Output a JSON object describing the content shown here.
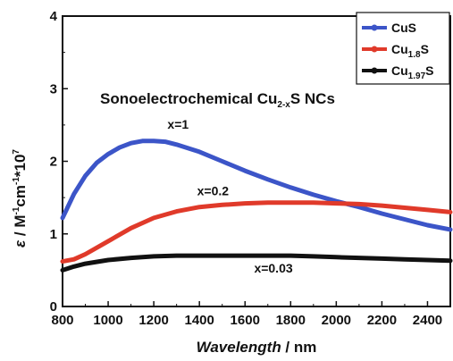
{
  "chart_data": {
    "type": "line",
    "title": "Sonoelectrochemical Cu2-xS NCs",
    "title_parts": {
      "base": "Sonoelectrochemical Cu",
      "sub": "2-x",
      "tail": "S NCs"
    },
    "xlabel": {
      "italic": "Wavelength",
      "rest": " / nm"
    },
    "ylabel": "ε / M⁻¹cm⁻¹*10⁷",
    "xlim": [
      800,
      2500
    ],
    "ylim": [
      0,
      4
    ],
    "x_ticks": [
      800,
      1000,
      1200,
      1400,
      1600,
      1800,
      2000,
      2200,
      2400
    ],
    "y_ticks": [
      0,
      1,
      2,
      3,
      4
    ],
    "grid": false,
    "legend_position": "top-right",
    "series": [
      {
        "name": "CuS",
        "name_parts": {
          "base": "CuS",
          "sub": "",
          "tail": ""
        },
        "color": "#3c55c8",
        "x": [
          800,
          850,
          900,
          950,
          1000,
          1050,
          1100,
          1150,
          1200,
          1250,
          1300,
          1400,
          1500,
          1600,
          1700,
          1800,
          1900,
          2000,
          2100,
          2200,
          2300,
          2400,
          2500
        ],
        "y": [
          1.22,
          1.55,
          1.8,
          1.98,
          2.1,
          2.19,
          2.25,
          2.28,
          2.28,
          2.27,
          2.23,
          2.13,
          2.0,
          1.87,
          1.75,
          1.64,
          1.54,
          1.45,
          1.37,
          1.28,
          1.2,
          1.12,
          1.06
        ]
      },
      {
        "name": "Cu1.8S",
        "name_parts": {
          "base": "Cu",
          "sub": "1.8",
          "tail": "S"
        },
        "color": "#e03a2a",
        "x": [
          800,
          850,
          900,
          1000,
          1100,
          1200,
          1300,
          1400,
          1500,
          1600,
          1700,
          1800,
          1900,
          2000,
          2100,
          2200,
          2300,
          2400,
          2500
        ],
        "y": [
          0.62,
          0.65,
          0.72,
          0.9,
          1.08,
          1.22,
          1.31,
          1.37,
          1.4,
          1.42,
          1.43,
          1.43,
          1.43,
          1.42,
          1.41,
          1.39,
          1.36,
          1.33,
          1.3
        ]
      },
      {
        "name": "Cu1.97S",
        "name_parts": {
          "base": "Cu",
          "sub": "1.97",
          "tail": "S"
        },
        "color": "#111111",
        "x": [
          800,
          850,
          900,
          1000,
          1100,
          1200,
          1300,
          1400,
          1500,
          1600,
          1700,
          1800,
          1900,
          2000,
          2100,
          2200,
          2300,
          2400,
          2500
        ],
        "y": [
          0.5,
          0.55,
          0.59,
          0.64,
          0.67,
          0.69,
          0.7,
          0.7,
          0.7,
          0.7,
          0.7,
          0.7,
          0.69,
          0.68,
          0.67,
          0.66,
          0.65,
          0.64,
          0.63
        ]
      }
    ],
    "annotations": [
      {
        "text": "x=1",
        "x": 1260,
        "y": 2.45
      },
      {
        "text": "x=0.2",
        "x": 1390,
        "y": 1.53
      },
      {
        "text": "x=0.03",
        "x": 1640,
        "y": 0.47
      }
    ]
  }
}
